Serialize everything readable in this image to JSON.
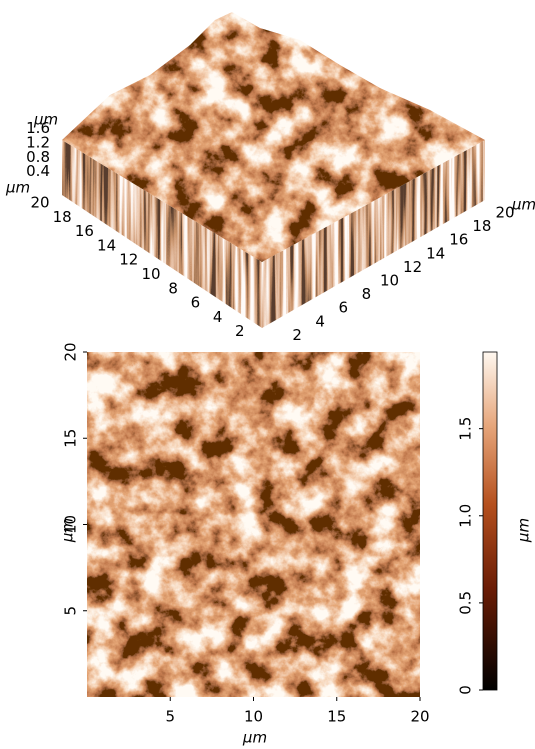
{
  "chart_data": [
    {
      "type": "surface3d",
      "xlim": [
        0,
        20
      ],
      "xticks": [
        2,
        4,
        6,
        8,
        10,
        12,
        14,
        16,
        18,
        20
      ],
      "xlabel": "µm",
      "ylim": [
        0,
        20
      ],
      "yticks": [
        2,
        4,
        6,
        8,
        10,
        12,
        14,
        16,
        18,
        20
      ],
      "ylabel": "µm",
      "zticks": [
        0.4,
        0.8,
        1.2,
        1.6
      ],
      "zlabel": "µm"
    },
    {
      "type": "heatmap",
      "xlim": [
        0,
        20
      ],
      "xticks": [
        5,
        10,
        15,
        20
      ],
      "xlabel": "µm",
      "ylim": [
        0,
        20
      ],
      "yticks": [
        5,
        10,
        15,
        20
      ],
      "ylabel": "µm",
      "colorbar": {
        "lim": [
          0,
          1.94
        ],
        "ticks": [
          0,
          0.5,
          {
            "value": 1,
            "label": "1.0"
          },
          1.5
        ],
        "label": "µm"
      }
    }
  ]
}
